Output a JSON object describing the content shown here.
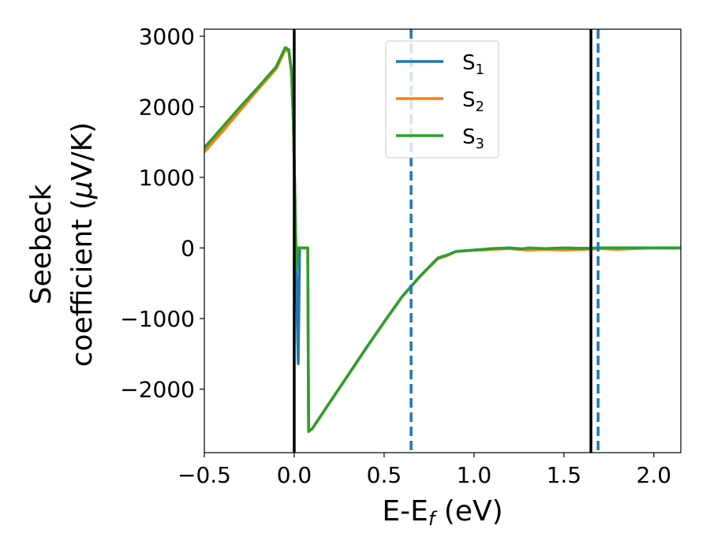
{
  "chart_data": {
    "type": "line",
    "xlabel": "E-E",
    "xlabel_sub": "f",
    "xlabel_unit": " (eV)",
    "ylabel_line1": "Seebeck",
    "ylabel_line2_prefix": "coefficient  (",
    "ylabel_mu": "μ",
    "ylabel_line2_suffix": "V/K)",
    "xlim": [
      -0.5,
      2.15
    ],
    "ylim": [
      -2900,
      3100
    ],
    "x_ticks": [
      -0.5,
      0.0,
      0.5,
      1.0,
      1.5,
      2.0
    ],
    "x_tick_labels": [
      "−0.5",
      "0.0",
      "0.5",
      "1.0",
      "1.5",
      "2.0"
    ],
    "y_ticks": [
      -2000,
      -1000,
      0,
      1000,
      2000,
      3000
    ],
    "y_tick_labels": [
      "−2000",
      "−1000",
      "0",
      "1000",
      "2000",
      "3000"
    ],
    "grid": false,
    "legend_position": "top-center",
    "vlines": [
      {
        "x": 0.0,
        "style": "solid",
        "color": "#000000"
      },
      {
        "x": 1.65,
        "style": "solid",
        "color": "#000000"
      },
      {
        "x": 0.65,
        "style": "dashed",
        "color": "#1f77b4"
      },
      {
        "x": 1.69,
        "style": "dashed",
        "color": "#1f77b4"
      }
    ],
    "series": [
      {
        "name": "S",
        "sub": "1",
        "color": "#1f77b4",
        "points": [
          [
            -0.5,
            1420
          ],
          [
            -0.4,
            1700
          ],
          [
            -0.3,
            1990
          ],
          [
            -0.2,
            2270
          ],
          [
            -0.1,
            2560
          ],
          [
            -0.05,
            2830
          ],
          [
            -0.03,
            2800
          ],
          [
            -0.015,
            2500
          ],
          [
            -0.005,
            1800
          ],
          [
            0.005,
            600
          ],
          [
            0.012,
            -400
          ],
          [
            0.018,
            -1200
          ],
          [
            0.022,
            -1640
          ],
          [
            0.026,
            -900
          ],
          [
            0.03,
            0
          ],
          [
            0.07,
            0
          ],
          [
            0.075,
            0
          ],
          [
            0.08,
            -2600
          ],
          [
            0.1,
            -2560
          ],
          [
            0.2,
            -2180
          ],
          [
            0.3,
            -1800
          ],
          [
            0.4,
            -1420
          ],
          [
            0.5,
            -1050
          ],
          [
            0.6,
            -690
          ],
          [
            0.7,
            -400
          ],
          [
            0.8,
            -140
          ],
          [
            0.85,
            -100
          ],
          [
            0.9,
            -50
          ],
          [
            0.95,
            -40
          ],
          [
            1.0,
            -30
          ],
          [
            1.05,
            -20
          ],
          [
            1.1,
            -10
          ],
          [
            1.15,
            -5
          ],
          [
            1.2,
            0
          ],
          [
            1.25,
            -10
          ],
          [
            1.3,
            -20
          ],
          [
            1.4,
            -10
          ],
          [
            1.5,
            0
          ],
          [
            1.6,
            -5
          ],
          [
            1.7,
            0
          ],
          [
            1.8,
            0
          ],
          [
            1.9,
            0
          ],
          [
            2.0,
            0
          ],
          [
            2.1,
            0
          ],
          [
            2.15,
            0
          ]
        ]
      },
      {
        "name": "S",
        "sub": "2",
        "color": "#ff7f0e",
        "points": [
          [
            -0.5,
            1360
          ],
          [
            -0.4,
            1650
          ],
          [
            -0.3,
            1950
          ],
          [
            -0.2,
            2250
          ],
          [
            -0.1,
            2540
          ],
          [
            -0.05,
            2810
          ],
          [
            -0.03,
            2780
          ],
          [
            -0.015,
            2480
          ],
          [
            -0.005,
            1780
          ],
          [
            0.005,
            580
          ],
          [
            0.012,
            -300
          ],
          [
            0.02,
            0
          ],
          [
            0.07,
            0
          ],
          [
            0.075,
            0
          ],
          [
            0.08,
            -2600
          ],
          [
            0.1,
            -2560
          ],
          [
            0.2,
            -2180
          ],
          [
            0.3,
            -1800
          ],
          [
            0.4,
            -1420
          ],
          [
            0.5,
            -1050
          ],
          [
            0.6,
            -690
          ],
          [
            0.7,
            -400
          ],
          [
            0.8,
            -150
          ],
          [
            0.85,
            -110
          ],
          [
            0.9,
            -50
          ],
          [
            0.95,
            -40
          ],
          [
            1.0,
            -30
          ],
          [
            1.05,
            -30
          ],
          [
            1.1,
            -20
          ],
          [
            1.2,
            -10
          ],
          [
            1.3,
            -30
          ],
          [
            1.4,
            -20
          ],
          [
            1.5,
            -30
          ],
          [
            1.6,
            -20
          ],
          [
            1.7,
            -10
          ],
          [
            1.8,
            -20
          ],
          [
            1.9,
            -10
          ],
          [
            2.0,
            0
          ],
          [
            2.1,
            -5
          ],
          [
            2.15,
            0
          ]
        ]
      },
      {
        "name": "S",
        "sub": "3",
        "color": "#2ca02c",
        "points": [
          [
            -0.5,
            1420
          ],
          [
            -0.4,
            1710
          ],
          [
            -0.3,
            2000
          ],
          [
            -0.2,
            2280
          ],
          [
            -0.1,
            2570
          ],
          [
            -0.05,
            2840
          ],
          [
            -0.03,
            2810
          ],
          [
            -0.015,
            2510
          ],
          [
            -0.005,
            1810
          ],
          [
            0.005,
            610
          ],
          [
            0.012,
            -300
          ],
          [
            0.02,
            0
          ],
          [
            0.07,
            0
          ],
          [
            0.075,
            0
          ],
          [
            0.08,
            -2600
          ],
          [
            0.1,
            -2560
          ],
          [
            0.2,
            -2180
          ],
          [
            0.3,
            -1800
          ],
          [
            0.4,
            -1420
          ],
          [
            0.5,
            -1050
          ],
          [
            0.6,
            -690
          ],
          [
            0.7,
            -400
          ],
          [
            0.8,
            -140
          ],
          [
            0.85,
            -100
          ],
          [
            0.9,
            -50
          ],
          [
            0.95,
            -40
          ],
          [
            1.0,
            -30
          ],
          [
            1.05,
            -20
          ],
          [
            1.1,
            -10
          ],
          [
            1.2,
            0
          ],
          [
            1.25,
            -20
          ],
          [
            1.3,
            0
          ],
          [
            1.4,
            -10
          ],
          [
            1.5,
            0
          ],
          [
            1.6,
            -10
          ],
          [
            1.7,
            0
          ],
          [
            1.8,
            0
          ],
          [
            1.9,
            0
          ],
          [
            2.0,
            0
          ],
          [
            2.1,
            0
          ],
          [
            2.15,
            0
          ]
        ]
      }
    ]
  }
}
